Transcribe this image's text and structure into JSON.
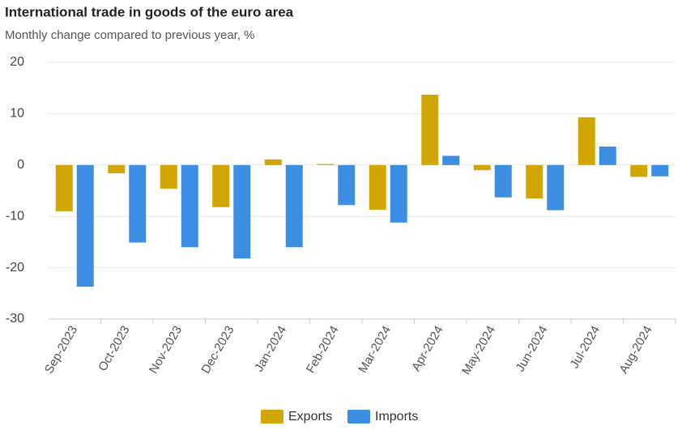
{
  "chart_data": {
    "type": "bar",
    "title": "International trade in goods of the euro area",
    "subtitle": "Monthly change compared to previous year, %",
    "categories": [
      "Sep-2023",
      "Oct-2023",
      "Nov-2023",
      "Dec-2023",
      "Jan-2024",
      "Feb-2024",
      "Mar-2024",
      "Apr-2024",
      "May-2024",
      "Jun-2024",
      "Jul-2024",
      "Aug-2024"
    ],
    "series": [
      {
        "name": "Exports",
        "color": "#d1a600",
        "values": [
          -9.0,
          -1.6,
          -4.6,
          -8.2,
          1.1,
          0.2,
          -8.7,
          13.7,
          -1.0,
          -6.5,
          9.3,
          -2.3
        ]
      },
      {
        "name": "Imports",
        "color": "#3b8ee2",
        "values": [
          -23.7,
          -15.1,
          -16.0,
          -18.2,
          -16.0,
          -7.8,
          -11.2,
          1.8,
          -6.3,
          -8.8,
          3.6,
          -2.2
        ]
      }
    ],
    "ylim": [
      -30,
      20
    ],
    "yticks": [
      -30,
      -20,
      -10,
      0,
      10,
      20
    ],
    "grid": true,
    "legend": "bottom"
  }
}
